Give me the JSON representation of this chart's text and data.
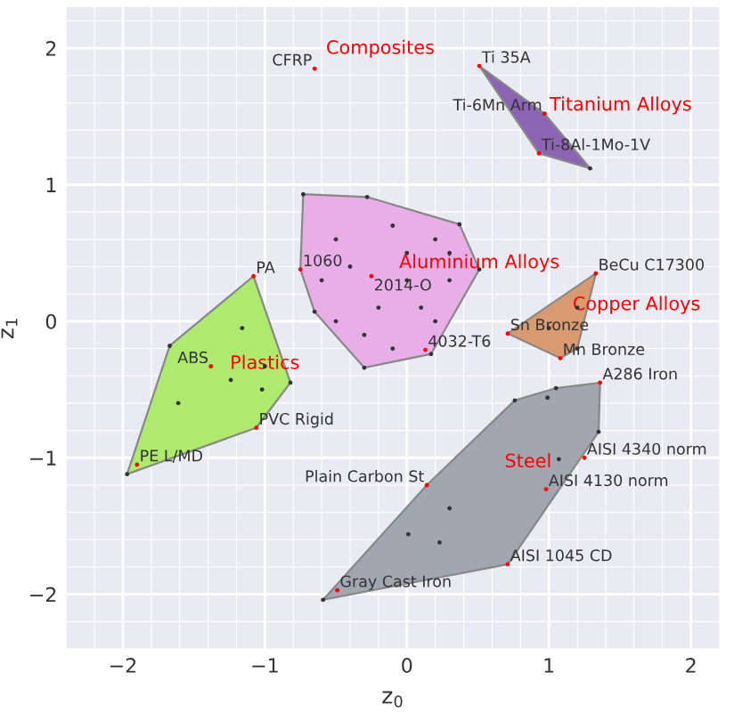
{
  "chart_data": {
    "type": "scatter",
    "xlabel": "z$_{0}$",
    "ylabel": "z$_{1}$",
    "xlim": [
      -2.4,
      2.2
    ],
    "ylim": [
      -2.4,
      2.3
    ],
    "xticks": [
      {
        "value": -2,
        "label": "−2"
      },
      {
        "value": -1,
        "label": "−1"
      },
      0,
      1,
      2
    ],
    "yticks": [
      {
        "value": -2,
        "label": "−2"
      },
      {
        "value": -1,
        "label": "−1"
      },
      0,
      1,
      2
    ],
    "grid": true,
    "marker": "circle",
    "series": [
      {
        "type": "area",
        "marker": "none",
        "color": "#8c64b4",
        "x": [
          0.51,
          0.97,
          1.29,
          0.93
        ],
        "values": [
          1.87,
          1.52,
          1.12,
          1.23
        ]
      },
      {
        "type": "area",
        "marker": "none",
        "color": "#e8aee8",
        "x": [
          -0.73,
          -0.28,
          0.37,
          0.51,
          0.17,
          -0.3,
          -0.65,
          -0.75
        ],
        "values": [
          0.93,
          0.91,
          0.71,
          0.38,
          -0.24,
          -0.34,
          0.07,
          0.38
        ]
      },
      {
        "type": "area",
        "marker": "none",
        "color": "#d99a70",
        "x": [
          0.71,
          1.33,
          1.2,
          1.08
        ],
        "values": [
          -0.09,
          0.35,
          -0.2,
          -0.27
        ]
      },
      {
        "type": "area",
        "marker": "none",
        "color": "#aeea6e",
        "x": [
          -1.08,
          -0.82,
          -1.06,
          -1.97,
          -1.67
        ],
        "values": [
          0.33,
          -0.45,
          -0.78,
          -1.12,
          -0.18
        ]
      },
      {
        "type": "area",
        "marker": "none",
        "color": "#a0a7b0",
        "x": [
          1.36,
          1.35,
          0.71,
          -0.59,
          0.14,
          0.76,
          1.05
        ],
        "values": [
          -0.45,
          -0.81,
          -1.78,
          -2.04,
          -1.2,
          -0.58,
          -0.49
        ]
      },
      {
        "name": "Composites",
        "x": [
          -0.65
        ],
        "values": [
          1.85
        ],
        "colors": [
          "#ff0000"
        ]
      },
      {
        "name": "Titanium Alloys",
        "x": [
          0.51,
          0.97,
          0.93,
          1.29
        ],
        "values": [
          1.87,
          1.52,
          1.23,
          1.12
        ],
        "colors": [
          "#ff0000",
          "#ff0000",
          "#ff0000",
          "#333333"
        ]
      },
      {
        "name": "Aluminium Alloys",
        "x": [
          -0.73,
          -0.28,
          0.37,
          0.51,
          0.17,
          -0.3,
          -0.65,
          -0.75,
          -0.25,
          0.13,
          -0.5,
          -0.4,
          -0.1,
          0.0,
          0.2,
          0.3,
          -0.2,
          0.1,
          -0.5,
          -0.3,
          0.2,
          -0.1,
          0.3,
          -0.6,
          0.0
        ],
        "values": [
          0.93,
          0.91,
          0.71,
          0.38,
          -0.24,
          -0.34,
          0.07,
          0.38,
          0.33,
          -0.21,
          0.6,
          0.4,
          0.7,
          0.5,
          0.6,
          0.3,
          0.1,
          0.1,
          0.0,
          -0.1,
          0.0,
          -0.2,
          0.5,
          0.3,
          0.3
        ],
        "colors": [
          "#333333",
          "#333333",
          "#333333",
          "#333333",
          "#333333",
          "#333333",
          "#333333",
          "#ff0000",
          "#ff0000",
          "#ff0000",
          "#333333",
          "#333333",
          "#333333",
          "#333333",
          "#333333",
          "#333333",
          "#333333",
          "#333333",
          "#333333",
          "#333333",
          "#333333",
          "#333333",
          "#333333",
          "#333333",
          "#333333"
        ]
      },
      {
        "name": "Copper Alloys",
        "x": [
          0.71,
          1.08,
          1.2,
          1.33,
          1.0,
          1.2
        ],
        "values": [
          -0.09,
          -0.27,
          -0.2,
          0.35,
          -0.05,
          0.1
        ],
        "colors": [
          "#ff0000",
          "#ff0000",
          "#333333",
          "#ff0000",
          "#333333",
          "#333333"
        ]
      },
      {
        "name": "Plastics",
        "x": [
          -1.08,
          -1.16,
          -1.67,
          -1.38,
          -1.24,
          -1.0,
          -1.02,
          -0.82,
          -1.06,
          -1.61,
          -1.97,
          -1.9
        ],
        "values": [
          0.33,
          -0.05,
          -0.18,
          -0.33,
          -0.43,
          -0.33,
          -0.5,
          -0.45,
          -0.78,
          -0.6,
          -1.12,
          -1.05
        ],
        "colors": [
          "#ff0000",
          "#333333",
          "#333333",
          "#ff0000",
          "#333333",
          "#333333",
          "#333333",
          "#333333",
          "#ff0000",
          "#333333",
          "#333333",
          "#ff0000"
        ]
      },
      {
        "name": "Steel",
        "x": [
          1.36,
          0.76,
          1.35,
          0.71,
          -0.59,
          -0.49,
          1.05,
          1.25,
          0.98,
          0.14,
          0.99,
          1.07,
          0.3,
          0.01,
          0.23
        ],
        "values": [
          -0.45,
          -0.58,
          -0.81,
          -1.78,
          -2.04,
          -1.97,
          -0.49,
          -1.0,
          -1.23,
          -1.2,
          -0.56,
          -1.01,
          -1.37,
          -1.56,
          -1.62
        ],
        "colors": [
          "#ff0000",
          "#333333",
          "#333333",
          "#ff0000",
          "#333333",
          "#ff0000",
          "#333333",
          "#ff0000",
          "#ff0000",
          "#ff0000",
          "#333333",
          "#333333",
          "#333333",
          "#333333",
          "#333333"
        ]
      }
    ],
    "annotations": [
      {
        "text": "CFRP",
        "x": -0.65,
        "y": 1.85
      },
      {
        "text": "Ti 35A",
        "x": 0.51,
        "y": 1.87
      },
      {
        "text": "Ti-6Mn Arm",
        "x": 0.97,
        "y": 1.52
      },
      {
        "text": "Ti-8Al-1Mo-1V",
        "x": 0.93,
        "y": 1.23
      },
      {
        "text": "1060",
        "x": -0.75,
        "y": 0.38
      },
      {
        "text": "2014-O",
        "x": -0.25,
        "y": 0.33
      },
      {
        "text": "4032-T6",
        "x": 0.13,
        "y": -0.21
      },
      {
        "text": "BeCu C17300",
        "x": 1.33,
        "y": 0.35
      },
      {
        "text": "Sn Bronze",
        "x": 0.71,
        "y": -0.09
      },
      {
        "text": "Mn Bronze",
        "x": 1.08,
        "y": -0.27
      },
      {
        "text": "PA",
        "x": -1.08,
        "y": 0.33
      },
      {
        "text": "ABS",
        "x": -1.38,
        "y": -0.33
      },
      {
        "text": "PVC Rigid",
        "x": -1.06,
        "y": -0.78
      },
      {
        "text": "PE L/MD",
        "x": -1.9,
        "y": -1.05
      },
      {
        "text": "A286 Iron",
        "x": 1.36,
        "y": -0.45
      },
      {
        "text": "AISI 4340 norm",
        "x": 1.25,
        "y": -1.0
      },
      {
        "text": "AISI 4130 norm",
        "x": 0.98,
        "y": -1.23
      },
      {
        "text": "Plain Carbon St",
        "x": 0.14,
        "y": -1.2
      },
      {
        "text": "AISI 1045 CD",
        "x": 0.71,
        "y": -1.78
      },
      {
        "text": "Gray Cast Iron",
        "x": -0.49,
        "y": -1.97
      }
    ]
  }
}
